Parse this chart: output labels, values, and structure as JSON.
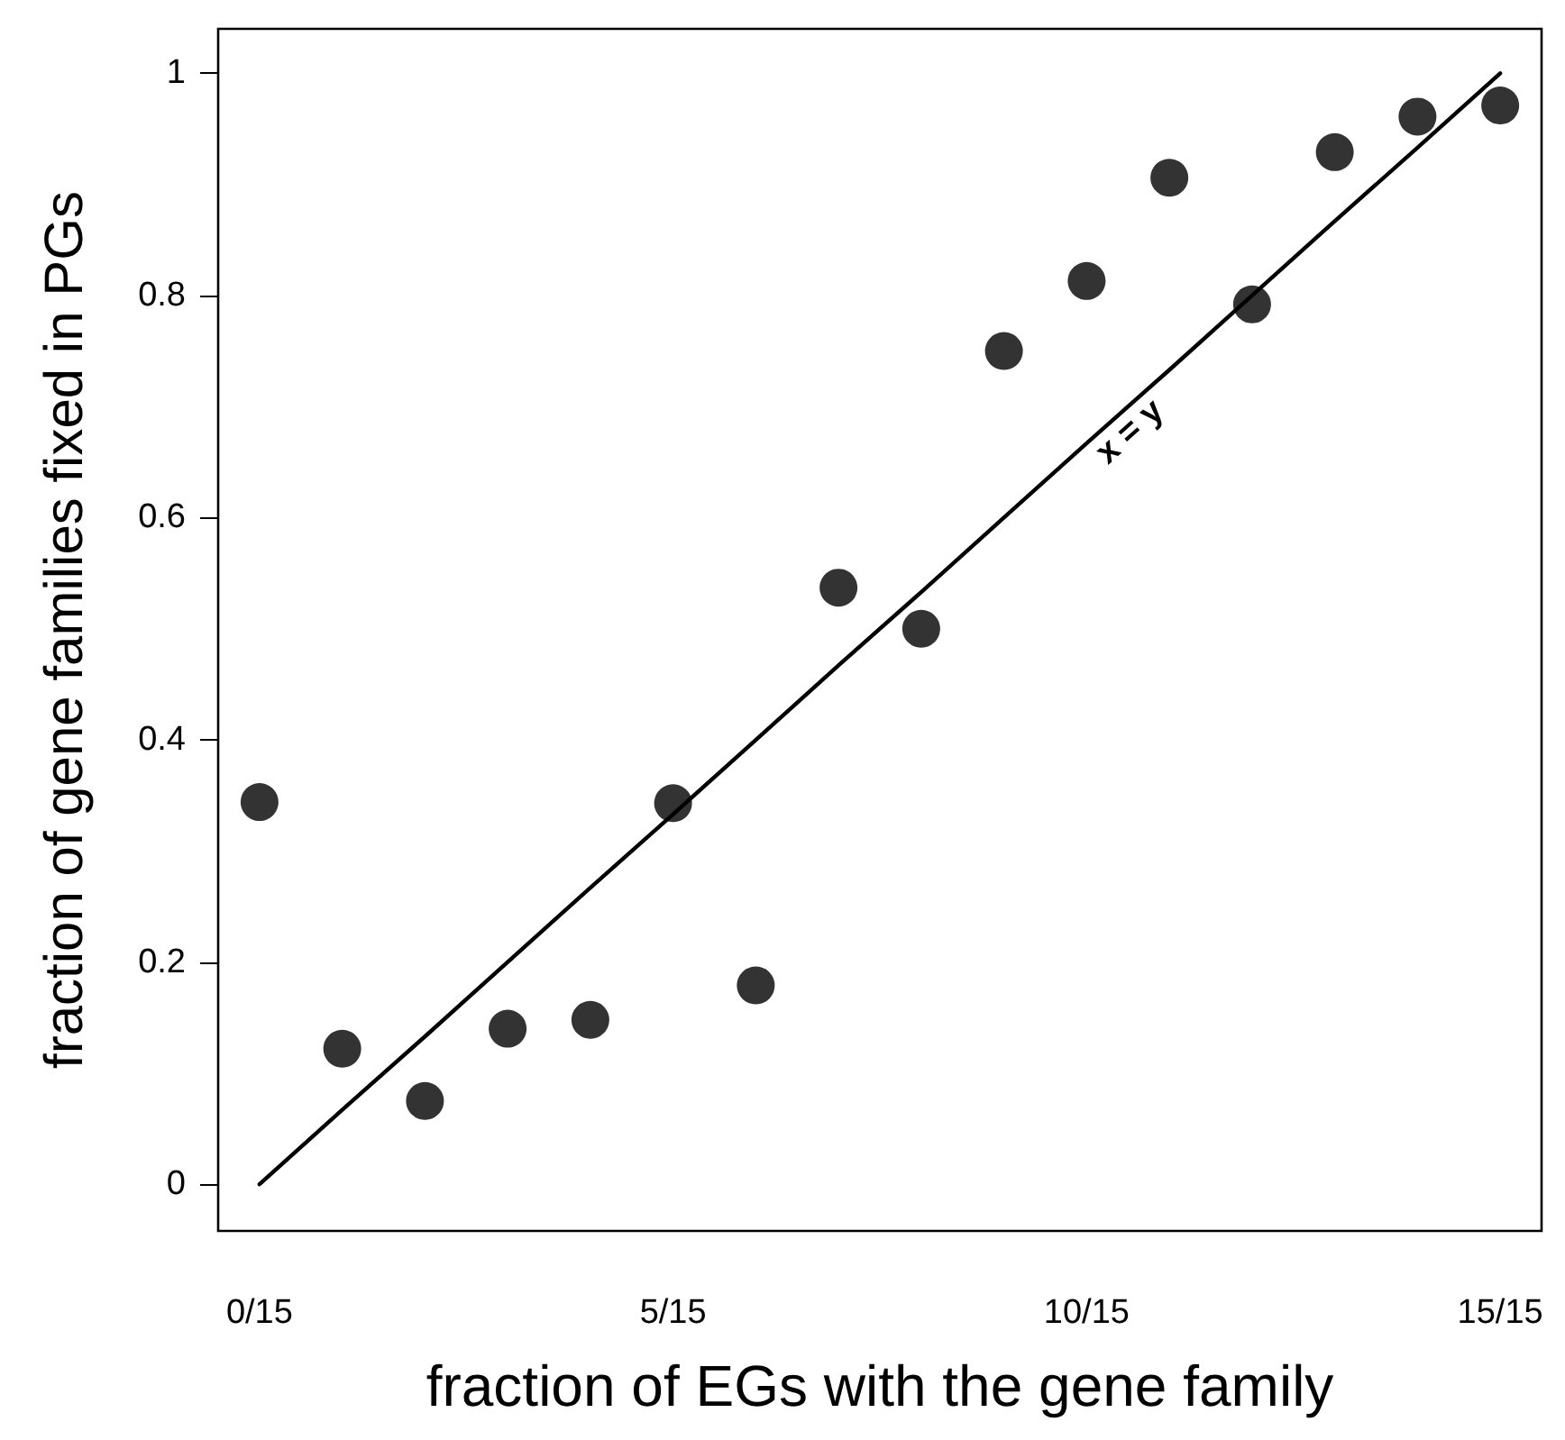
{
  "chart_data": {
    "type": "scatter",
    "xlabel": "fraction of EGs with the gene family",
    "ylabel": "fraction of gene families fixed in PGs",
    "categories": [
      "0/15",
      null,
      null,
      null,
      null,
      "5/15",
      null,
      null,
      null,
      null,
      "10/15",
      null,
      null,
      null,
      null,
      "15/15"
    ],
    "series": [
      {
        "color": "#000000",
        "marker": "circle",
        "values": [
          0.344,
          0.122,
          0.075,
          0.14,
          0.148,
          0.343,
          0.179,
          0.537,
          0.5,
          0.75,
          0.813,
          0.906,
          0.792,
          0.929,
          0.961,
          0.971
        ]
      },
      {
        "type": "line",
        "color": "#000000",
        "marker": "none",
        "line_style": "solid",
        "values": [
          0,
          0.067,
          0.133,
          0.2,
          0.267,
          0.333,
          0.4,
          0.467,
          0.533,
          0.6,
          0.667,
          0.733,
          0.8,
          0.867,
          0.933,
          1
        ]
      }
    ],
    "ylim": [
      -0.042,
      1.04
    ],
    "yticks": [
      0,
      0.2,
      0.4,
      0.6,
      0.8,
      1
    ],
    "annotations": [
      "x = y"
    ],
    "grid": false
  }
}
